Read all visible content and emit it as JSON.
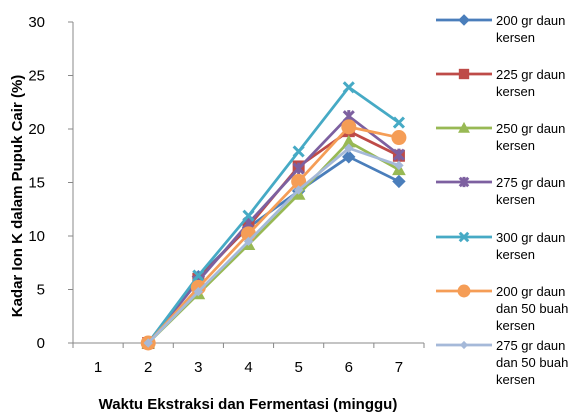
{
  "chart_data": {
    "type": "line",
    "xlabel": "Waktu Ekstraksi dan Fermentasi (minggu)",
    "ylabel": "Kadar Ion K dalam Pupuk Cair (%)",
    "x_categories": [
      "1",
      "2",
      "3",
      "4",
      "5",
      "6",
      "7"
    ],
    "y_ticks": [
      "0",
      "5",
      "10",
      "15",
      "20",
      "25",
      "30"
    ],
    "ylim": [
      0,
      30
    ],
    "grid": false,
    "legend_position": "right",
    "series": [
      {
        "name": "200 gr daun kersen",
        "color": "#4a7ebb",
        "marker": "diamond",
        "x": [
          2,
          3,
          4,
          5,
          6,
          7
        ],
        "values": [
          0,
          6.2,
          10.8,
          14.2,
          17.4,
          15.1
        ]
      },
      {
        "name": "225 gr daun kersen",
        "color": "#be4b48",
        "marker": "square",
        "x": [
          2,
          3,
          4,
          5,
          6,
          7
        ],
        "values": [
          0,
          6.0,
          10.9,
          16.5,
          19.8,
          17.5
        ]
      },
      {
        "name": "250 gr daun kersen",
        "color": "#98b954",
        "marker": "triangle",
        "x": [
          2,
          3,
          4,
          5,
          6,
          7
        ],
        "values": [
          0,
          4.6,
          9.2,
          13.9,
          18.8,
          16.2
        ]
      },
      {
        "name": "275 gr daun kersen",
        "color": "#7d60a0",
        "marker": "cross",
        "x": [
          2,
          3,
          4,
          5,
          6,
          7
        ],
        "values": [
          0,
          5.8,
          11.2,
          16.3,
          21.2,
          17.6
        ]
      },
      {
        "name": "300 gr daun kersen",
        "color": "#46aac5",
        "marker": "x",
        "x": [
          2,
          3,
          4,
          5,
          6,
          7
        ],
        "values": [
          0,
          6.3,
          11.9,
          17.9,
          23.9,
          20.6
        ]
      },
      {
        "name": "200 gr daun dan 50 buah kersen",
        "color": "#f59d56",
        "marker": "circle",
        "x": [
          2,
          3,
          4,
          5,
          6,
          7
        ],
        "values": [
          0,
          5.2,
          10.2,
          15.1,
          20.2,
          19.2
        ]
      },
      {
        "name": "275 gr daun dan 50 buah kersen",
        "color": "#a5b9d9",
        "marker": "diamond-small",
        "x": [
          2,
          3,
          4,
          5,
          6,
          7
        ],
        "values": [
          0,
          4.8,
          9.5,
          14.3,
          18.2,
          16.6
        ]
      }
    ]
  }
}
